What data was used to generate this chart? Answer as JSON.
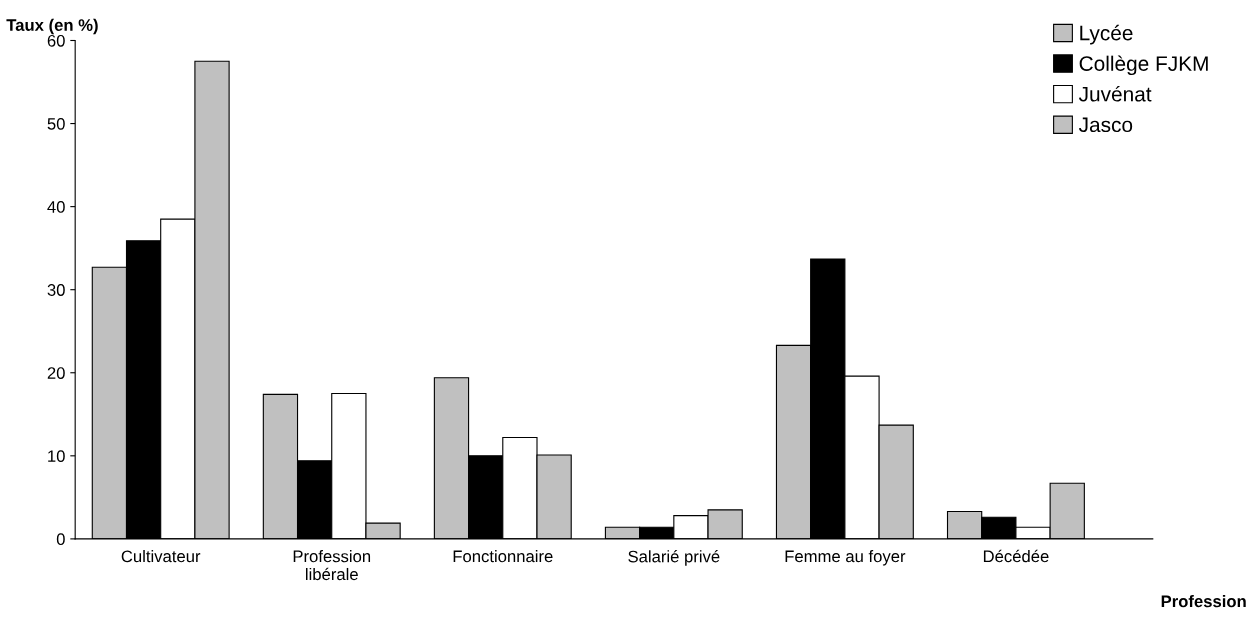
{
  "chart_data": {
    "type": "bar",
    "xlabel": "Profession",
    "ylabel": "Taux (en %)",
    "categories": [
      "Cultivateur",
      "Profession\nlibérale",
      "Fonctionnaire",
      "Salarié privé",
      "Femme au foyer",
      "Décédée"
    ],
    "series": [
      {
        "name": "Lycée",
        "color": "#c0c0c0",
        "values": [
          32.7,
          17.4,
          19.4,
          1.4,
          23.3,
          3.3
        ]
      },
      {
        "name": "Collège FJKM",
        "color": "#000000",
        "values": [
          35.9,
          9.4,
          10.0,
          1.4,
          33.7,
          2.6
        ]
      },
      {
        "name": "Juvénat",
        "color": "#ffffff",
        "values": [
          38.5,
          17.5,
          12.2,
          2.8,
          19.6,
          1.4
        ]
      },
      {
        "name": "Jasco",
        "color": "#c0c0c0",
        "values": [
          57.5,
          1.9,
          10.1,
          3.5,
          13.7,
          6.7
        ]
      }
    ],
    "ylim": [
      0,
      60
    ],
    "yticks": [
      0,
      10,
      20,
      30,
      40,
      50,
      60
    ],
    "grid": false,
    "legend": "top right"
  }
}
